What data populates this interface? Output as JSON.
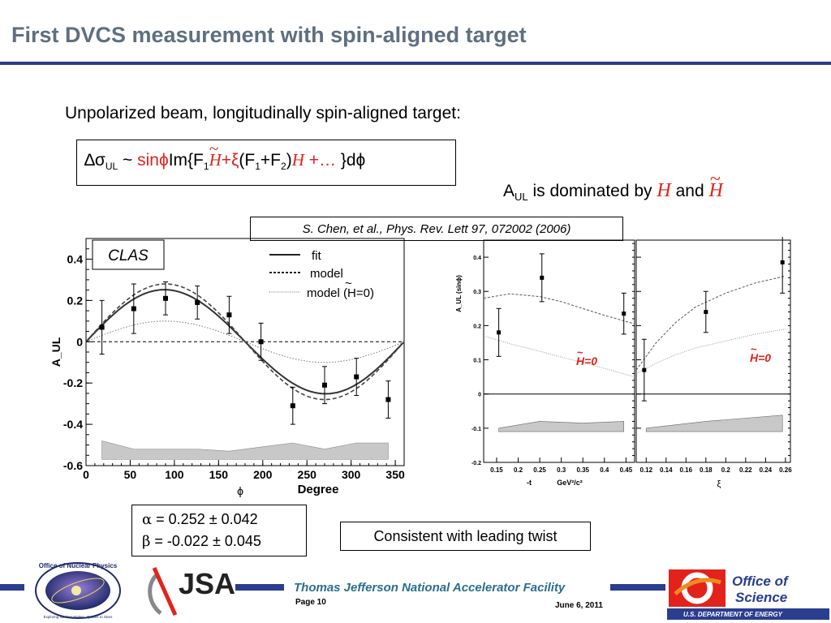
{
  "slide": {
    "title": "First DVCS measurement with spin-aligned target",
    "subtitle": "Unpolarized beam, longitudinally spin-aligned target:",
    "formula": {
      "delta_sigma": "∆σ",
      "sub_ul": "UL",
      "tilde": " ~ ",
      "sin_phi": "sinϕ",
      "im_open": "Im{F",
      "sub_1": "1",
      "H": "H",
      "plus_xi": "+ξ",
      "paren_open": "(F",
      "plus_f": "+F",
      "sub_2": "2",
      "paren_close": ")",
      "ellipsis": " +… ",
      "close": "}dϕ"
    },
    "dominated": {
      "A": "A",
      "sub": "UL",
      "text": " is dominated by ",
      "H1": "H",
      "and": " and ",
      "H2": "H"
    },
    "reference": "S. Chen, et al., Phys. Rev. Lett 97, 072002 (2006)",
    "fit_results": {
      "alpha_sym": "α",
      "alpha_val": " =  0.252 ± 0.042",
      "beta_sym": "β",
      "beta_val": "  = -0.022 ± 0.045"
    },
    "twist_note": "Consistent with leading twist",
    "footer": {
      "lab": "Thomas Jefferson National Accelerator Facility",
      "page": "Page 10",
      "date": "June 6, 2011"
    },
    "logos": {
      "nuclear_physics": "Office of Nuclear Physics",
      "nuclear_physics_tag": "Exploring Nuclear Matter - Quarks to Stars",
      "jsa": "JSA",
      "office_line1": "Office of",
      "office_line2": "Science",
      "office_dept": "U.S. DEPARTMENT OF ENERGY",
      "colors": {
        "navy": "#2a3d8f",
        "red": "#e3221c",
        "orange": "#f08a1c"
      }
    }
  },
  "chart_data": [
    {
      "type": "scatter",
      "label_box": "CLAS",
      "xlabel": "Degree",
      "xlabel_symbol": "ϕ",
      "ylabel": "A_UL",
      "xlim": [
        0,
        360
      ],
      "ylim": [
        -0.6,
        0.5
      ],
      "xticks": [
        0,
        50,
        100,
        150,
        200,
        250,
        300,
        350
      ],
      "yticks": [
        -0.6,
        -0.4,
        -0.2,
        0,
        0.2,
        0.4
      ],
      "legend": [
        "fit",
        "model",
        "model (H=0)"
      ],
      "legend_tilde": "~",
      "points": [
        {
          "x": 18,
          "y": 0.07,
          "err": 0.13
        },
        {
          "x": 54,
          "y": 0.16,
          "err": 0.12
        },
        {
          "x": 90,
          "y": 0.21,
          "err": 0.08
        },
        {
          "x": 126,
          "y": 0.19,
          "err": 0.08
        },
        {
          "x": 162,
          "y": 0.13,
          "err": 0.09
        },
        {
          "x": 198,
          "y": 0.0,
          "err": 0.09
        },
        {
          "x": 234,
          "y": -0.31,
          "err": 0.09
        },
        {
          "x": 270,
          "y": -0.21,
          "err": 0.09
        },
        {
          "x": 306,
          "y": -0.17,
          "err": 0.09
        },
        {
          "x": 342,
          "y": -0.28,
          "err": 0.09
        }
      ],
      "fit": {
        "alpha": 0.252,
        "beta": -0.022
      },
      "model_amplitude": 0.28,
      "model_h0_amplitude": 0.1,
      "systematic_band": [
        {
          "x": 18,
          "y": -0.57
        },
        {
          "x": 54,
          "y": -0.57
        },
        {
          "x": 90,
          "y": -0.57
        },
        {
          "x": 126,
          "y": -0.57
        },
        {
          "x": 162,
          "y": -0.57
        },
        {
          "x": 198,
          "y": -0.57
        },
        {
          "x": 234,
          "y": -0.57
        },
        {
          "x": 270,
          "y": -0.57
        },
        {
          "x": 306,
          "y": -0.57
        },
        {
          "x": 342,
          "y": -0.57
        }
      ],
      "systematic_top": [
        -0.48,
        -0.52,
        -0.52,
        -0.52,
        -0.53,
        -0.51,
        -0.49,
        -0.52,
        -0.49,
        -0.49
      ]
    },
    {
      "type": "scatter",
      "xlabel": "-t",
      "xunit": "GeV²/c²",
      "ylabel": "A_UL (sinϕ)",
      "xlim": [
        0.12,
        0.47
      ],
      "ylim": [
        -0.2,
        0.45
      ],
      "xticks": [
        0.15,
        0.2,
        0.25,
        0.3,
        0.35,
        0.4,
        0.45
      ],
      "yticks": [
        -0.2,
        -0.1,
        0,
        0.1,
        0.2,
        0.3,
        0.4
      ],
      "annotation": "H=0",
      "annotation_tilde": "~",
      "points": [
        {
          "x": 0.155,
          "y": 0.18,
          "err": 0.07
        },
        {
          "x": 0.255,
          "y": 0.34,
          "err": 0.07
        },
        {
          "x": 0.445,
          "y": 0.235,
          "err": 0.06
        }
      ],
      "model": [
        [
          0.12,
          0.28
        ],
        [
          0.18,
          0.293
        ],
        [
          0.25,
          0.285
        ],
        [
          0.3,
          0.27
        ],
        [
          0.35,
          0.25
        ],
        [
          0.4,
          0.23
        ],
        [
          0.47,
          0.205
        ]
      ],
      "model_h0": [
        [
          0.12,
          0.17
        ],
        [
          0.18,
          0.147
        ],
        [
          0.25,
          0.125
        ],
        [
          0.3,
          0.108
        ],
        [
          0.35,
          0.092
        ],
        [
          0.4,
          0.075
        ],
        [
          0.47,
          0.05
        ]
      ],
      "band": [
        [
          0.155,
          -0.1
        ],
        [
          0.25,
          -0.08
        ],
        [
          0.35,
          -0.085
        ],
        [
          0.445,
          -0.08
        ]
      ]
    },
    {
      "type": "scatter",
      "xlabel": "ξ",
      "ylim": [
        -0.2,
        0.45
      ],
      "xlim": [
        0.11,
        0.265
      ],
      "xticks": [
        0.12,
        0.14,
        0.16,
        0.18,
        0.2,
        0.22,
        0.24,
        0.26
      ],
      "annotation": "H=0",
      "annotation_tilde": "~",
      "points": [
        {
          "x": 0.118,
          "y": 0.07,
          "err": 0.09
        },
        {
          "x": 0.18,
          "y": 0.24,
          "err": 0.06
        },
        {
          "x": 0.257,
          "y": 0.385,
          "err": 0.09
        }
      ],
      "model": [
        [
          0.11,
          0.07
        ],
        [
          0.13,
          0.15
        ],
        [
          0.15,
          0.21
        ],
        [
          0.17,
          0.255
        ],
        [
          0.2,
          0.295
        ],
        [
          0.23,
          0.325
        ],
        [
          0.26,
          0.345
        ]
      ],
      "model_h0": [
        [
          0.11,
          0.06
        ],
        [
          0.13,
          0.09
        ],
        [
          0.15,
          0.115
        ],
        [
          0.17,
          0.135
        ],
        [
          0.2,
          0.155
        ],
        [
          0.23,
          0.175
        ],
        [
          0.26,
          0.19
        ]
      ],
      "band": [
        [
          0.12,
          -0.1
        ],
        [
          0.18,
          -0.08
        ],
        [
          0.257,
          -0.062
        ]
      ]
    }
  ]
}
